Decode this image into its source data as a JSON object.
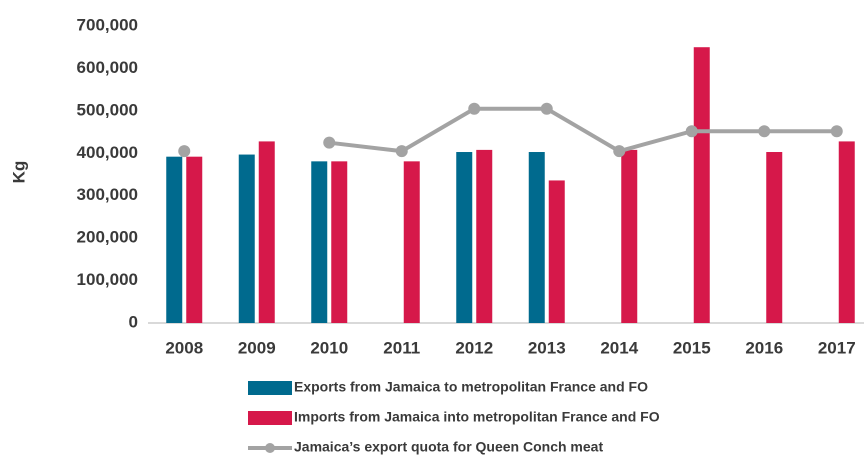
{
  "chart_data": {
    "type": "bar",
    "y_label": "Kg",
    "categories": [
      "2008",
      "2009",
      "2010",
      "2011",
      "2012",
      "2013",
      "2014",
      "2015",
      "2016",
      "2017"
    ],
    "series": [
      {
        "name": "Exports from Jamaica to metropolitan France and FO",
        "type": "bar",
        "color": "#006a8e",
        "values": [
          392000,
          397000,
          381000,
          null,
          403000,
          403000,
          null,
          null,
          null,
          null
        ]
      },
      {
        "name": "Imports from Jamaica into metropolitan France and FO",
        "type": "bar",
        "color": "#d6184a",
        "values": [
          392000,
          428000,
          381000,
          381000,
          408000,
          336000,
          408000,
          650000,
          403000,
          428000
        ]
      },
      {
        "name": "Jamaica’s export quota for Queen Conch meat",
        "type": "line",
        "color": "#a3a3a3",
        "values": [
          405000,
          null,
          425000,
          405000,
          505000,
          505000,
          405000,
          452000,
          452000,
          452000
        ]
      }
    ],
    "ylim": [
      0,
      700000
    ],
    "yticks": [
      0,
      {
        "value": 100000,
        "label": "100,000"
      },
      {
        "value": 200000,
        "label": "200,000"
      },
      {
        "value": 300000,
        "label": "300,000"
      },
      {
        "value": 400000,
        "label": "400,000"
      },
      {
        "value": 500000,
        "label": "500,000"
      },
      {
        "value": 600000,
        "label": "600,000"
      },
      {
        "value": 700000,
        "label": "700,000"
      }
    ],
    "grid": false
  }
}
